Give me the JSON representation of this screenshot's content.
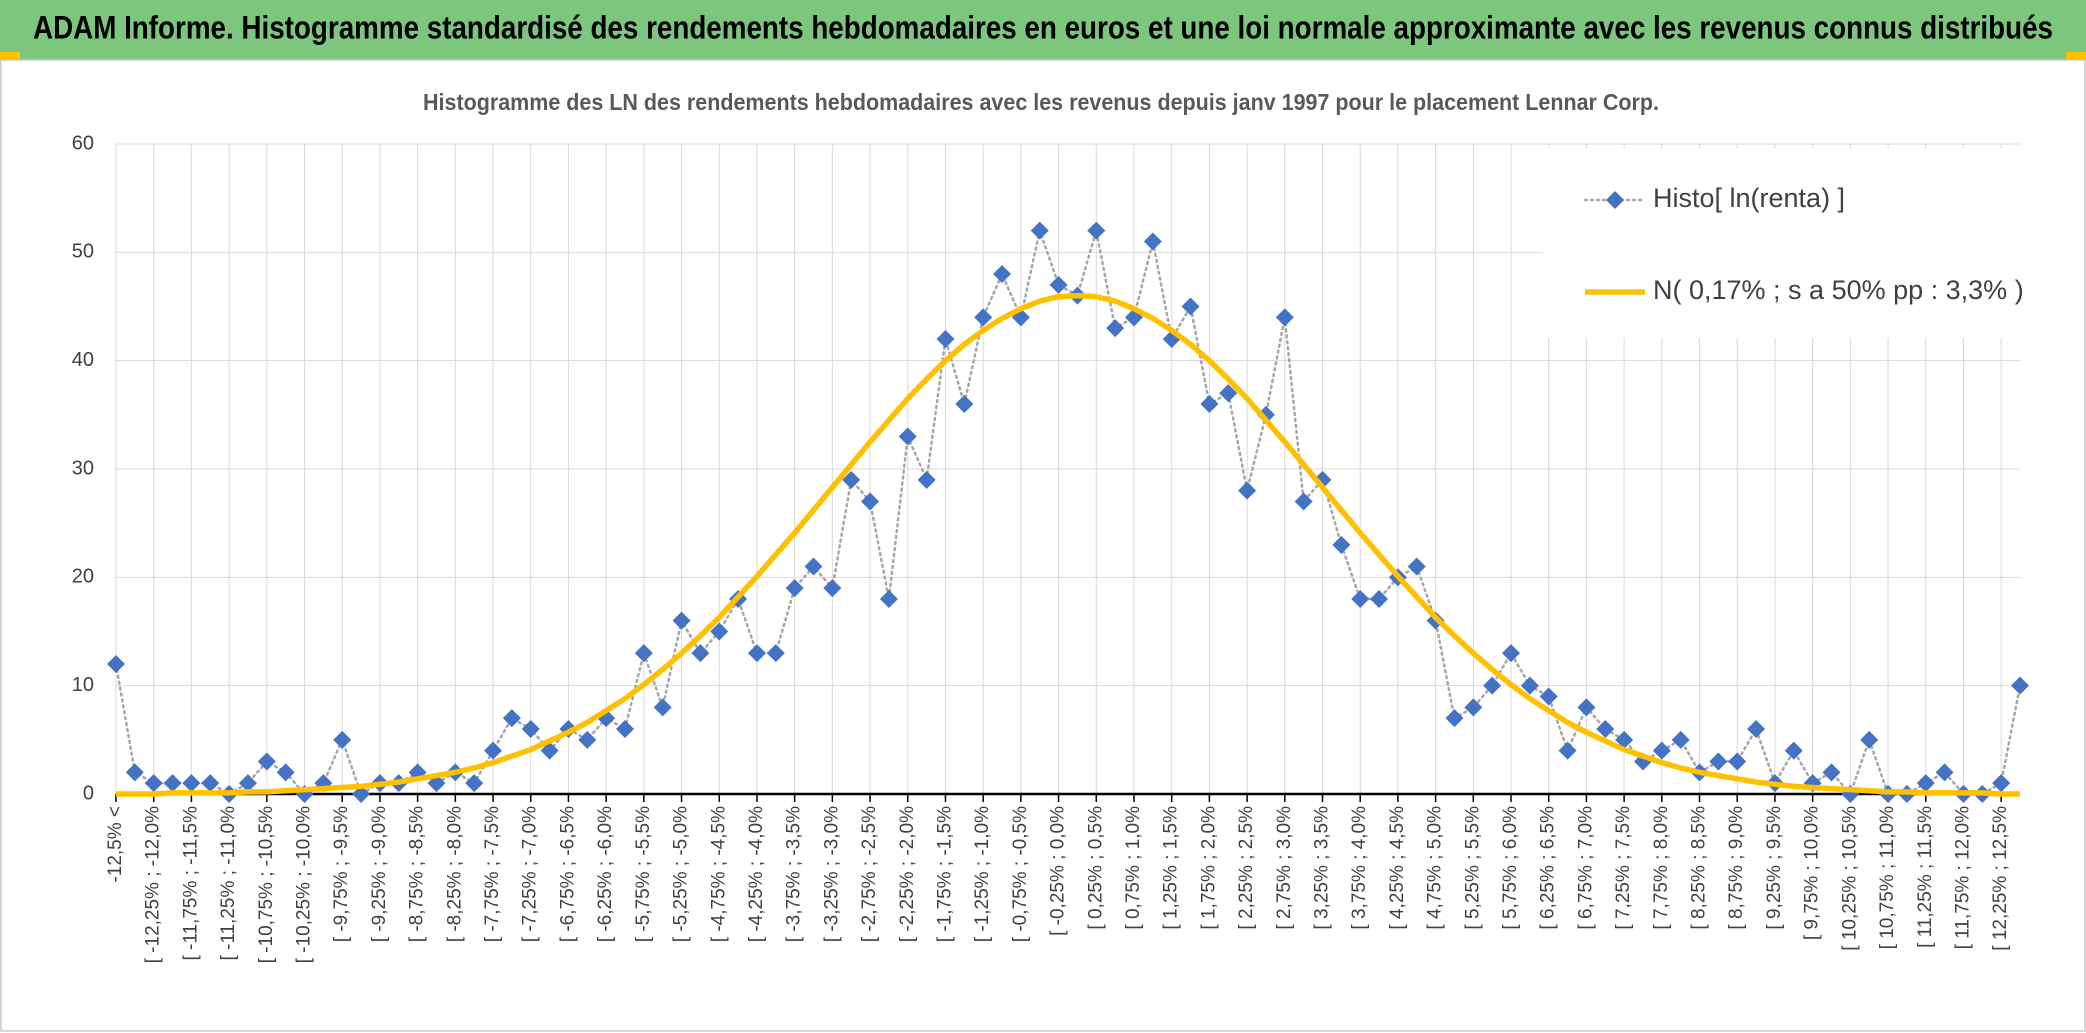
{
  "chart_data": {
    "type": "line",
    "title": "ADAM Informe. Histogramme standardisé des rendements hebdomadaires en euros et une loi normale approximante avec les revenus connus distribués",
    "subtitle": "Histogramme des LN des rendements hebdomadaires avec les revenus depuis janv 1997 pour le placement Lennar Corp.",
    "categories": [
      "-12,5% <",
      null,
      "[ -12,25% ; -12,0%",
      null,
      "[ -11,75% ; -11,5%",
      null,
      "[ -11,25% ; -11,0%",
      null,
      "[ -10,75% ; -10,5%",
      null,
      "[ -10,25% ; -10,0%",
      null,
      "[ -9,75% ; -9,5%",
      null,
      "[ -9,25% ; -9,0%",
      null,
      "[ -8,75% ; -8,5%",
      null,
      "[ -8,25% ; -8,0%",
      null,
      "[ -7,75% ; -7,5%",
      null,
      "[ -7,25% ; -7,0%",
      null,
      "[ -6,75% ; -6,5%",
      null,
      "[ -6,25% ; -6,0%",
      null,
      "[ -5,75% ; -5,5%",
      null,
      "[ -5,25% ; -5,0%",
      null,
      "[ -4,75% ; -4,5%",
      null,
      "[ -4,25% ; -4,0%",
      null,
      "[ -3,75% ; -3,5%",
      null,
      "[ -3,25% ; -3,0%",
      null,
      "[ -2,75% ; -2,5%",
      null,
      "[ -2,25% ; -2,0%",
      null,
      "[ -1,75% ; -1,5%",
      null,
      "[ -1,25% ; -1,0%",
      null,
      "[ -0,75% ; -0,5%",
      null,
      "[ -0,25% ; 0,0%",
      null,
      "[ 0,25% ; 0,5%",
      null,
      "[ 0,75% ; 1,0%",
      null,
      "[ 1,25% ; 1,5%",
      null,
      "[ 1,75% ; 2,0%",
      null,
      "[ 2,25% ; 2,5%",
      null,
      "[ 2,75% ; 3,0%",
      null,
      "[ 3,25% ; 3,5%",
      null,
      "[ 3,75% ; 4,0%",
      null,
      "[ 4,25% ; 4,5%",
      null,
      "[ 4,75% ; 5,0%",
      null,
      "[ 5,25% ; 5,5%",
      null,
      "[ 5,75% ; 6,0%",
      null,
      "[ 6,25% ; 6,5%",
      null,
      "[ 6,75% ; 7,0%",
      null,
      "[ 7,25% ; 7,5%",
      null,
      "[ 7,75% ; 8,0%",
      null,
      "[ 8,25% ; 8,5%",
      null,
      "[ 8,75% ; 9,0%",
      null,
      "[ 9,25% ; 9,5%",
      null,
      "[ 9,75% ; 10,0%",
      null,
      "[ 10,25% ; 10,5%",
      null,
      "[ 10,75% ; 11,0%",
      null,
      "[ 11,25% ; 11,5%",
      null,
      "[ 11,75% ; 12,0%",
      null,
      "[ 12,25% ; 12,5%",
      null
    ],
    "series": [
      {
        "name": "Histo[ ln(renta) ]",
        "color": "#4472c4",
        "marker": "diamond",
        "line": "dotted",
        "values": [
          12,
          2,
          1,
          1,
          1,
          1,
          0,
          1,
          3,
          2,
          0,
          1,
          5,
          0,
          1,
          1,
          2,
          1,
          2,
          1,
          4,
          7,
          6,
          4,
          6,
          5,
          7,
          6,
          13,
          8,
          16,
          13,
          15,
          18,
          13,
          13,
          19,
          21,
          19,
          29,
          27,
          18,
          33,
          29,
          42,
          36,
          44,
          48,
          44,
          52,
          47,
          46,
          52,
          43,
          44,
          51,
          42,
          45,
          36,
          37,
          28,
          35,
          44,
          27,
          29,
          23,
          18,
          18,
          20,
          21,
          16,
          7,
          8,
          10,
          13,
          10,
          9,
          4,
          8,
          6,
          5,
          3,
          4,
          5,
          2,
          3,
          3,
          6,
          1,
          4,
          1,
          2,
          0,
          5,
          0,
          0,
          1,
          2,
          0,
          0,
          1,
          10
        ]
      },
      {
        "name": "N( 0,17% ; s a 50% pp : 3,3% )",
        "color": "#ffc000",
        "line": "solid",
        "values": [
          0.0,
          0.0,
          0.0,
          0.1,
          0.1,
          0.1,
          0.1,
          0.2,
          0.2,
          0.3,
          0.4,
          0.5,
          0.6,
          0.7,
          0.9,
          1.1,
          1.4,
          1.7,
          2.0,
          2.4,
          2.9,
          3.5,
          4.1,
          4.9,
          5.7,
          6.6,
          7.7,
          8.8,
          10.1,
          11.5,
          13.0,
          14.6,
          16.3,
          18.2,
          20.1,
          22.1,
          24.1,
          26.2,
          28.3,
          30.4,
          32.5,
          34.5,
          36.5,
          38.3,
          40.0,
          41.5,
          42.8,
          43.9,
          44.8,
          45.5,
          45.9,
          46.0,
          45.9,
          45.5,
          44.8,
          43.9,
          42.8,
          41.5,
          40.0,
          38.3,
          36.5,
          34.5,
          32.5,
          30.4,
          28.3,
          26.2,
          24.1,
          22.1,
          20.1,
          18.2,
          16.3,
          14.6,
          13.0,
          11.5,
          10.1,
          8.8,
          7.7,
          6.6,
          5.7,
          4.9,
          4.1,
          3.5,
          2.9,
          2.4,
          2.0,
          1.7,
          1.4,
          1.1,
          0.9,
          0.7,
          0.6,
          0.5,
          0.4,
          0.3,
          0.2,
          0.2,
          0.1,
          0.1,
          0.1,
          0.1,
          0.0,
          0.0
        ]
      }
    ],
    "ylim": [
      0,
      60
    ],
    "yticks": [
      0,
      10,
      20,
      30,
      40,
      50,
      60
    ],
    "grid": true,
    "legend": "upper right"
  }
}
